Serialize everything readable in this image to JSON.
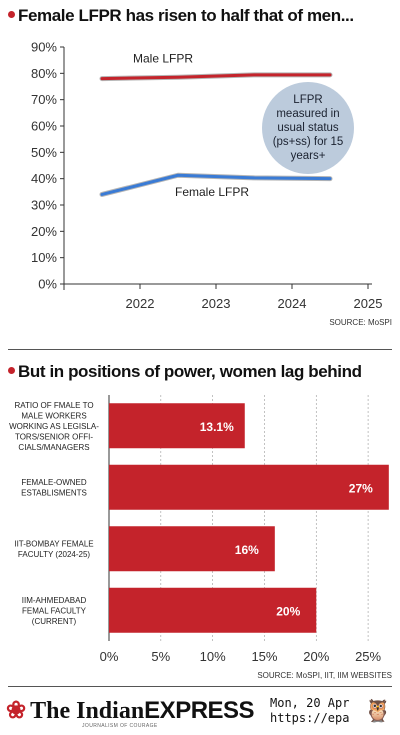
{
  "chart1": {
    "headline": "Female LFPR has risen to half that of men...",
    "source": "SOURCE: MoSPI",
    "annotation": "LFPR measured in usual status (ps+ss) for 15 years+",
    "chart_data": {
      "type": "line",
      "title": "Female LFPR has risen to half that of men...",
      "x_ticks": [
        "2022",
        "2023",
        "2024",
        "2025"
      ],
      "y_ticks": [
        "90%",
        "80%",
        "70%",
        "60%",
        "50%",
        "40%",
        "30%",
        "20%",
        "10%",
        "0%"
      ],
      "ylim": [
        0,
        90
      ],
      "xlim": [
        2021,
        2025
      ],
      "series": [
        {
          "name": "Male LFPR",
          "color": "#c4232b",
          "x": [
            2021.5,
            2022.5,
            2023.5,
            2024.5
          ],
          "values": [
            78.0,
            78.5,
            79.4,
            79.4
          ]
        },
        {
          "name": "Female LFPR",
          "color": "#3a7bd5",
          "x": [
            2021.5,
            2022.5,
            2023.5,
            2024.5
          ],
          "values": [
            34.0,
            41.3,
            40.3,
            40.0
          ]
        }
      ],
      "grid": false
    }
  },
  "chart2": {
    "headline": "But in positions of power, women lag behind",
    "source": "SOURCE: MoSPI, IIT, IIM WEBSITES",
    "chart_data": {
      "type": "bar",
      "orientation": "horizontal",
      "categories": [
        [
          "RATIO OF FMALE TO",
          "MALE WORKERS",
          "WORKING AS LEGISLA-",
          "TORS/SENIOR OFFI-",
          "CIALS/MANAGERS"
        ],
        [
          "FEMALE-OWNED",
          "ESTABLISMENTS"
        ],
        [
          "IIT-BOMBAY FEMALE",
          "FACULTY (2024-25)"
        ],
        [
          "IIM-AHMEDABAD",
          "FEMAL FACULTY",
          "(CURRENT)"
        ]
      ],
      "values": [
        13.1,
        27,
        16,
        20
      ],
      "value_labels": [
        "13.1%",
        "27%",
        "16%",
        "20%"
      ],
      "x_ticks": [
        "0%",
        "5%",
        "10%",
        "15%",
        "20%",
        "25%"
      ],
      "xlim": [
        0,
        27.5
      ],
      "color": "#c4232b",
      "grid": true
    }
  },
  "footer": {
    "brand_the": "The Indian",
    "brand_express": "EXPRESS",
    "tagline": "JOURNALISM OF COURAGE",
    "stamp_line1": "Mon, 20 Apr",
    "stamp_line2": "https://epa"
  }
}
